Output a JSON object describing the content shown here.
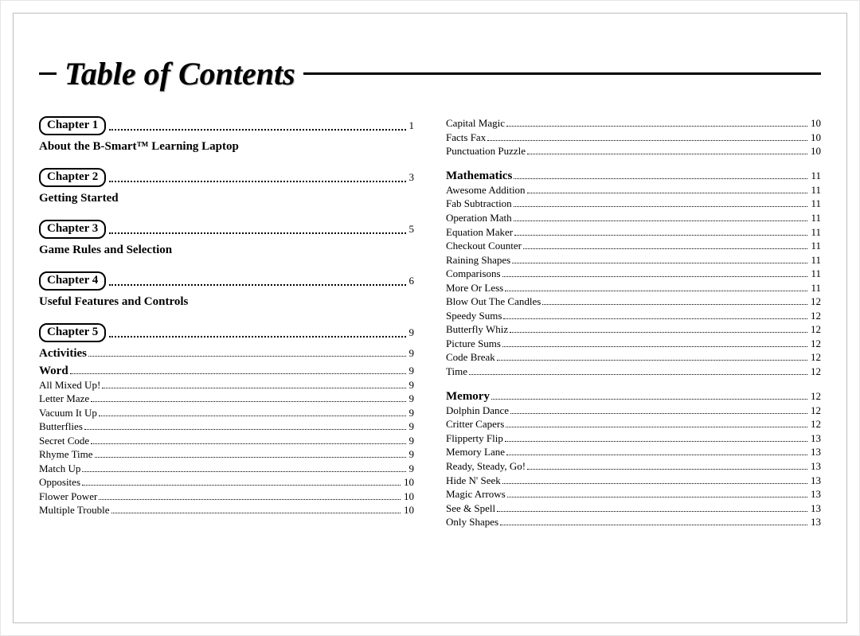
{
  "title": "Table of Contents",
  "left_column": [
    {
      "kind": "chapter",
      "label": "Chapter 1",
      "page": "1",
      "subtitle": "About the B-Smart™ Learning Laptop"
    },
    {
      "kind": "chapter",
      "label": "Chapter 2",
      "page": "3",
      "subtitle": "Getting Started"
    },
    {
      "kind": "chapter",
      "label": "Chapter 3",
      "page": "5",
      "subtitle": "Game Rules and Selection"
    },
    {
      "kind": "chapter",
      "label": "Chapter 4",
      "page": "6",
      "subtitle": "Useful Features and Controls"
    },
    {
      "kind": "chapter",
      "label": "Chapter 5",
      "page": "9"
    },
    {
      "kind": "section",
      "label": "Activities",
      "page": "9"
    },
    {
      "kind": "section",
      "label": "Word",
      "page": "9"
    },
    {
      "kind": "sub",
      "label": "All Mixed Up!",
      "page": "9"
    },
    {
      "kind": "sub",
      "label": "Letter Maze",
      "page": "9"
    },
    {
      "kind": "sub",
      "label": "Vacuum It Up",
      "page": "9"
    },
    {
      "kind": "sub",
      "label": "Butterflies",
      "page": "9"
    },
    {
      "kind": "sub",
      "label": "Secret Code",
      "page": "9"
    },
    {
      "kind": "sub",
      "label": "Rhyme Time",
      "page": "9"
    },
    {
      "kind": "sub",
      "label": "Match Up",
      "page": "9"
    },
    {
      "kind": "sub",
      "label": "Opposites",
      "page": "10"
    },
    {
      "kind": "sub",
      "label": "Flower Power",
      "page": "10"
    },
    {
      "kind": "sub",
      "label": "Multiple Trouble",
      "page": "10"
    }
  ],
  "right_column": [
    {
      "kind": "sub",
      "label": "Capital Magic",
      "page": "10"
    },
    {
      "kind": "sub",
      "label": "Facts Fax",
      "page": "10"
    },
    {
      "kind": "sub",
      "label": "Punctuation Puzzle",
      "page": "10"
    },
    {
      "kind": "section",
      "label": "Mathematics",
      "page": "11",
      "gap": true
    },
    {
      "kind": "sub",
      "label": "Awesome Addition",
      "page": "11"
    },
    {
      "kind": "sub",
      "label": "Fab Subtraction",
      "page": "11"
    },
    {
      "kind": "sub",
      "label": "Operation Math",
      "page": "11"
    },
    {
      "kind": "sub",
      "label": "Equation Maker",
      "page": "11"
    },
    {
      "kind": "sub",
      "label": "Checkout Counter",
      "page": "11"
    },
    {
      "kind": "sub",
      "label": "Raining Shapes",
      "page": "11"
    },
    {
      "kind": "sub",
      "label": "Comparisons",
      "page": "11"
    },
    {
      "kind": "sub",
      "label": "More Or Less",
      "page": "11"
    },
    {
      "kind": "sub",
      "label": "Blow Out The Candles",
      "page": "12"
    },
    {
      "kind": "sub",
      "label": "Speedy Sums",
      "page": "12"
    },
    {
      "kind": "sub",
      "label": "Butterfly Whiz",
      "page": "12"
    },
    {
      "kind": "sub",
      "label": "Picture Sums",
      "page": "12"
    },
    {
      "kind": "sub",
      "label": "Code Break",
      "page": "12"
    },
    {
      "kind": "sub",
      "label": "Time",
      "page": "12"
    },
    {
      "kind": "section",
      "label": "Memory",
      "page": "12",
      "gap": true
    },
    {
      "kind": "sub",
      "label": "Dolphin Dance",
      "page": "12"
    },
    {
      "kind": "sub",
      "label": "Critter Capers",
      "page": "12"
    },
    {
      "kind": "sub",
      "label": "Flipperty Flip",
      "page": "13"
    },
    {
      "kind": "sub",
      "label": "Memory Lane",
      "page": "13"
    },
    {
      "kind": "sub",
      "label": "Ready, Steady, Go!",
      "page": "13"
    },
    {
      "kind": "sub",
      "label": "Hide N' Seek",
      "page": "13"
    },
    {
      "kind": "sub",
      "label": "Magic Arrows",
      "page": "13"
    },
    {
      "kind": "sub",
      "label": "See & Spell",
      "page": "13"
    },
    {
      "kind": "sub",
      "label": "Only Shapes",
      "page": "13"
    }
  ]
}
